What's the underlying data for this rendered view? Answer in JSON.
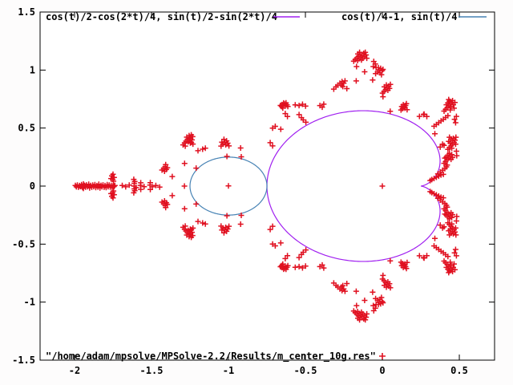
{
  "chart_data": {
    "type": "scatter",
    "title": "",
    "xlabel": "",
    "ylabel": "",
    "grid": false,
    "xlim": [
      -2.224,
      0.729
    ],
    "ylim": [
      -1.5,
      1.5
    ],
    "x_tick_values": [
      -2,
      -1.5,
      -1,
      -0.5,
      0,
      0.5
    ],
    "x_tick_labels": [
      "-2",
      "-1.5",
      "-1",
      "-0.5",
      "0",
      "0.5"
    ],
    "y_tick_values": [
      -1.5,
      -1,
      -0.5,
      0,
      0.5,
      1,
      1.5
    ],
    "y_tick_labels": [
      "-1.5",
      "-1",
      "-0.5",
      "0",
      "0.5",
      "1",
      "1.5"
    ],
    "legend_position": "top-inside-and-bottom-inside",
    "series": [
      {
        "name": "cos(t)/2-cos(2*t)/4, sin(t)/2-sin(2*t)/4",
        "type": "parametric_curve",
        "curve": "cardioid",
        "color": "#a020f0"
      },
      {
        "name": "cos(t)/4-1, sin(t)/4",
        "type": "parametric_curve",
        "curve": "circle",
        "center": [
          -1,
          0
        ],
        "radius": 0.25,
        "color": "#4682b4"
      },
      {
        "name": "\"/home/adam/mpsolve/MPSolve-2.2/Results/m_center_10g.res\"",
        "type": "points",
        "marker": "plus",
        "color": "#e01020",
        "mirror_upper_to_lower": true,
        "points_axis": [
          [
            -1.995,
            0.005
          ],
          [
            -1.988,
            -0.006
          ],
          [
            -1.982,
            0.008
          ],
          [
            -1.975,
            -0.01
          ],
          [
            -1.968,
            0.004
          ],
          [
            -1.962,
            -0.004
          ],
          [
            -1.955,
            0.012
          ],
          [
            -1.948,
            -0.012
          ],
          [
            -1.942,
            0.018
          ],
          [
            -1.942,
            -0.02
          ],
          [
            -1.935,
            0.006
          ],
          [
            -1.928,
            -0.008
          ],
          [
            -1.922,
            0.01
          ],
          [
            -1.915,
            -0.005
          ],
          [
            -1.908,
            0.015
          ],
          [
            -1.902,
            -0.015
          ],
          [
            -1.895,
            0.005
          ],
          [
            -1.888,
            -0.01
          ],
          [
            -1.882,
            0.008
          ],
          [
            -1.875,
            -0.004
          ],
          [
            -1.868,
            0.012
          ],
          [
            -1.862,
            -0.012
          ],
          [
            -1.855,
            0.004
          ],
          [
            -1.848,
            -0.008
          ],
          [
            -1.842,
            0.015
          ],
          [
            -1.835,
            -0.015
          ],
          [
            -1.828,
            0.006
          ],
          [
            -1.822,
            -0.006
          ],
          [
            -1.815,
            0.01
          ],
          [
            -1.808,
            -0.01
          ],
          [
            -1.802,
            0.004
          ],
          [
            -1.795,
            -0.012
          ],
          [
            -1.788,
            0.012
          ],
          [
            -1.782,
            -0.005
          ],
          [
            -1.775,
            0.008
          ],
          [
            -1.768,
            -0.008
          ],
          [
            -1.762,
            0.005
          ],
          [
            -1.756,
            -0.01
          ],
          [
            -1.75,
            0.003
          ],
          [
            -1.744,
            -0.004
          ],
          [
            -1.738,
            0.005
          ],
          [
            -1.69,
            0.005
          ],
          [
            -1.668,
            -0.006
          ],
          [
            -1.645,
            0.008
          ],
          [
            -1.613,
            0.0
          ],
          [
            -1.6,
            -0.012
          ],
          [
            -1.572,
            0.006
          ],
          [
            -1.548,
            -0.005
          ],
          [
            -1.51,
            0.008
          ],
          [
            -1.495,
            -0.006
          ],
          [
            -1.472,
            0.005
          ],
          [
            -1.447,
            -0.008
          ],
          [
            -1.286,
            0.0
          ],
          [
            -1.0,
            0.002
          ],
          [
            0.0,
            0.0
          ]
        ],
        "points_upper": [
          [
            -1.758,
            0.088
          ],
          [
            -1.75,
            0.102
          ],
          [
            -1.743,
            0.075
          ],
          [
            -1.752,
            0.058
          ],
          [
            -1.747,
            0.042
          ],
          [
            -1.763,
            0.065
          ],
          [
            -1.615,
            0.058
          ],
          [
            -1.609,
            0.04
          ],
          [
            -1.612,
            0.024
          ],
          [
            -1.57,
            0.028
          ],
          [
            -1.508,
            0.03
          ],
          [
            -1.432,
            0.138
          ],
          [
            -1.421,
            0.152
          ],
          [
            -1.411,
            0.168
          ],
          [
            -1.415,
            0.128
          ],
          [
            -1.404,
            0.143
          ],
          [
            -1.397,
            0.158
          ],
          [
            -1.408,
            0.185
          ],
          [
            -1.365,
            0.082
          ],
          [
            -1.285,
            0.195
          ],
          [
            -1.21,
            0.155
          ],
          [
            -1.295,
            0.355
          ],
          [
            -1.285,
            0.372
          ],
          [
            -1.276,
            0.387
          ],
          [
            -1.266,
            0.402
          ],
          [
            -1.271,
            0.422
          ],
          [
            -1.256,
            0.435
          ],
          [
            -1.246,
            0.412
          ],
          [
            -1.251,
            0.39
          ],
          [
            -1.241,
            0.376
          ],
          [
            -1.231,
            0.362
          ],
          [
            -1.262,
            0.382
          ],
          [
            -1.281,
            0.345
          ],
          [
            -1.253,
            0.418
          ],
          [
            -1.242,
            0.442
          ],
          [
            -1.233,
            0.426
          ],
          [
            -1.248,
            0.372
          ],
          [
            -1.237,
            0.398
          ],
          [
            -1.198,
            0.305
          ],
          [
            -1.168,
            0.318
          ],
          [
            -1.15,
            0.327
          ],
          [
            -1.048,
            0.345
          ],
          [
            -1.036,
            0.362
          ],
          [
            -1.024,
            0.376
          ],
          [
            -1.012,
            0.39
          ],
          [
            -1.029,
            0.402
          ],
          [
            -1.043,
            0.378
          ],
          [
            -1.018,
            0.356
          ],
          [
            -1.005,
            0.37
          ],
          [
            -0.997,
            0.346
          ],
          [
            -1.01,
            0.256
          ],
          [
            -0.921,
            0.328
          ],
          [
            -0.917,
            0.252
          ],
          [
            -0.729,
            0.374
          ],
          [
            -0.713,
            0.346
          ],
          [
            -0.713,
            0.5
          ],
          [
            -0.696,
            0.515
          ],
          [
            -0.66,
            0.49
          ],
          [
            -0.655,
            0.685
          ],
          [
            -0.645,
            0.697
          ],
          [
            -0.636,
            0.708
          ],
          [
            -0.626,
            0.717
          ],
          [
            -0.641,
            0.716
          ],
          [
            -0.651,
            0.702
          ],
          [
            -0.631,
            0.69
          ],
          [
            -0.62,
            0.7
          ],
          [
            -0.614,
            0.686
          ],
          [
            -0.647,
            0.672
          ],
          [
            -0.662,
            0.695
          ],
          [
            -0.566,
            0.7
          ],
          [
            -0.541,
            0.694
          ],
          [
            -0.519,
            0.705
          ],
          [
            -0.499,
            0.69
          ],
          [
            -0.631,
            0.625
          ],
          [
            -0.617,
            0.6
          ],
          [
            -0.541,
            0.616
          ],
          [
            -0.526,
            0.59
          ],
          [
            -0.514,
            0.57
          ],
          [
            -0.497,
            0.55
          ],
          [
            -0.406,
            0.694
          ],
          [
            -0.381,
            0.706
          ],
          [
            -0.391,
            0.68
          ],
          [
            -0.316,
            0.836
          ],
          [
            -0.301,
            0.856
          ],
          [
            -0.289,
            0.87
          ],
          [
            -0.276,
            0.886
          ],
          [
            -0.262,
            0.9
          ],
          [
            -0.251,
            0.886
          ],
          [
            -0.266,
            0.87
          ],
          [
            -0.243,
            0.906
          ],
          [
            -0.257,
            0.858
          ],
          [
            -0.231,
            0.84
          ],
          [
            -0.17,
            0.906
          ],
          [
            -0.168,
            1.03
          ],
          [
            -0.115,
            0.985
          ],
          [
            -0.176,
            1.09
          ],
          [
            -0.166,
            1.104
          ],
          [
            -0.156,
            1.118
          ],
          [
            -0.146,
            1.133
          ],
          [
            -0.141,
            1.112
          ],
          [
            -0.151,
            1.097
          ],
          [
            -0.161,
            1.082
          ],
          [
            -0.131,
            1.124
          ],
          [
            -0.126,
            1.102
          ],
          [
            -0.136,
            1.087
          ],
          [
            -0.116,
            1.116
          ],
          [
            -0.106,
            1.13
          ],
          [
            -0.101,
            1.102
          ],
          [
            -0.121,
            1.144
          ],
          [
            -0.148,
            1.153
          ],
          [
            -0.159,
            1.139
          ],
          [
            -0.186,
            1.076
          ],
          [
            -0.111,
            1.152
          ],
          [
            -0.056,
            1.074
          ],
          [
            -0.046,
            1.052
          ],
          [
            -0.059,
            1.03
          ],
          [
            -0.041,
            1.02
          ],
          [
            -0.044,
            0.97
          ],
          [
            -0.031,
            0.984
          ],
          [
            -0.021,
            1.0
          ],
          [
            -0.011,
            1.014
          ],
          [
            -0.001,
            0.995
          ],
          [
            -0.016,
            0.976
          ],
          [
            -0.006,
            0.96
          ],
          [
            0.004,
            1.006
          ],
          [
            -0.026,
            1.02
          ],
          [
            -0.063,
            0.914
          ],
          [
            0.004,
            0.77
          ],
          [
            0.051,
            0.645
          ],
          [
            0.001,
            0.801
          ],
          [
            0.011,
            0.816
          ],
          [
            0.021,
            0.831
          ],
          [
            0.031,
            0.846
          ],
          [
            0.041,
            0.861
          ],
          [
            0.026,
            0.871
          ],
          [
            0.013,
            0.856
          ],
          [
            0.036,
            0.826
          ],
          [
            0.046,
            0.841
          ],
          [
            0.052,
            0.876
          ],
          [
            0.121,
            0.656
          ],
          [
            0.131,
            0.668
          ],
          [
            0.141,
            0.681
          ],
          [
            0.151,
            0.695
          ],
          [
            0.156,
            0.71
          ],
          [
            0.136,
            0.701
          ],
          [
            0.126,
            0.686
          ],
          [
            0.146,
            0.671
          ],
          [
            0.161,
            0.659
          ],
          [
            0.241,
            0.601
          ],
          [
            0.268,
            0.616
          ],
          [
            0.289,
            0.6
          ],
          [
            0.401,
            0.646
          ],
          [
            0.411,
            0.661
          ],
          [
            0.421,
            0.676
          ],
          [
            0.431,
            0.691
          ],
          [
            0.441,
            0.706
          ],
          [
            0.451,
            0.721
          ],
          [
            0.456,
            0.736
          ],
          [
            0.436,
            0.731
          ],
          [
            0.426,
            0.716
          ],
          [
            0.416,
            0.701
          ],
          [
            0.446,
            0.686
          ],
          [
            0.461,
            0.701
          ],
          [
            0.466,
            0.671
          ],
          [
            0.441,
            0.656
          ],
          [
            0.471,
            0.721
          ],
          [
            0.431,
            0.746
          ],
          [
            0.336,
            0.516
          ],
          [
            0.351,
            0.531
          ],
          [
            0.366,
            0.546
          ],
          [
            0.381,
            0.561
          ],
          [
            0.396,
            0.576
          ],
          [
            0.411,
            0.591
          ],
          [
            0.426,
            0.606
          ],
          [
            0.271,
            0.62
          ],
          [
            0.341,
            0.451
          ],
          [
            0.476,
            0.546
          ],
          [
            0.469,
            0.576
          ],
          [
            0.481,
            0.601
          ],
          [
            0.426,
            0.316
          ],
          [
            0.436,
            0.331
          ],
          [
            0.446,
            0.346
          ],
          [
            0.456,
            0.361
          ],
          [
            0.466,
            0.376
          ],
          [
            0.456,
            0.391
          ],
          [
            0.446,
            0.406
          ],
          [
            0.436,
            0.421
          ],
          [
            0.461,
            0.411
          ],
          [
            0.471,
            0.396
          ],
          [
            0.451,
            0.326
          ],
          [
            0.441,
            0.371
          ],
          [
            0.431,
            0.386
          ],
          [
            0.476,
            0.361
          ],
          [
            0.376,
            0.336
          ],
          [
            0.401,
            0.351
          ],
          [
            0.391,
            0.361
          ],
          [
            0.401,
            0.196
          ],
          [
            0.411,
            0.211
          ],
          [
            0.421,
            0.226
          ],
          [
            0.431,
            0.241
          ],
          [
            0.441,
            0.256
          ],
          [
            0.451,
            0.271
          ],
          [
            0.426,
            0.266
          ],
          [
            0.416,
            0.251
          ],
          [
            0.436,
            0.281
          ],
          [
            0.446,
            0.231
          ],
          [
            0.406,
            0.241
          ],
          [
            0.456,
            0.246
          ],
          [
            0.481,
            0.301
          ],
          [
            0.483,
            0.262
          ],
          [
            0.478,
            0.421
          ],
          [
            0.361,
            0.106
          ],
          [
            0.376,
            0.121
          ],
          [
            0.391,
            0.136
          ],
          [
            0.406,
            0.151
          ],
          [
            0.416,
            0.166
          ],
          [
            0.421,
            0.181
          ],
          [
            0.321,
            0.056
          ],
          [
            0.336,
            0.066
          ],
          [
            0.351,
            0.076
          ],
          [
            0.366,
            0.086
          ],
          [
            0.381,
            0.096
          ],
          [
            0.396,
            0.101
          ],
          [
            0.311,
            0.048
          ]
        ]
      }
    ],
    "colors": {
      "background": "#fdfcfc",
      "border": "#000000",
      "text": "#000000",
      "cardioid": "#a020f0",
      "circle": "#4682b4",
      "points": "#e01020"
    }
  }
}
